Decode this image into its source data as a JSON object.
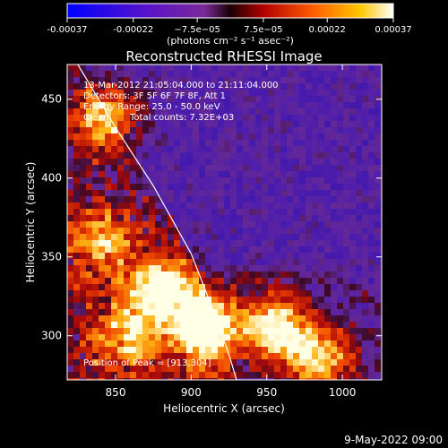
{
  "colorbar": {
    "tick_labels": [
      "-0.00037",
      "-0.00022",
      "−7.5e−05",
      "7.5e−05",
      "0.00022",
      "0.00037"
    ],
    "tick_values": [
      -0.00037,
      -0.00022,
      -7.5e-05,
      7.5e-05,
      0.00022,
      0.00037
    ],
    "range": [
      -0.00037,
      0.00037
    ],
    "unit_label": "(photons cm⁻² s⁻¹ asec⁻²)"
  },
  "chart_data": {
    "type": "heatmap",
    "title": "Reconstructed RHESSI Image",
    "xlabel": "Heliocentric X (arcsec)",
    "ylabel": "Heliocentric Y (arcsec)",
    "xlim": [
      818,
      1026
    ],
    "ylim": [
      272,
      472
    ],
    "x_ticks": [
      850,
      900,
      950,
      1000
    ],
    "y_ticks": [
      300,
      350,
      400,
      450
    ],
    "annotations": [
      "13-Mar-2012 21:05:04.000 to 21:11:04.000",
      "Detectors: 3F 5F 6F 7F 8F, Att 1",
      "Energy Range: 25.0 - 50.0 keV",
      "Clean",
      "Total counts: 7.32E+03"
    ],
    "peak_label": "Position of Peak = [913,304]",
    "peak_position": [
      913,
      304
    ],
    "limb_curve": [
      [
        825,
        472
      ],
      [
        850,
        432
      ],
      [
        875,
        395
      ],
      [
        900,
        352
      ],
      [
        915,
        315
      ],
      [
        925,
        288
      ],
      [
        930,
        272
      ]
    ],
    "bright_sources": [
      {
        "x": 910,
        "y": 306,
        "intensity": 1.0
      },
      {
        "x": 955,
        "y": 305,
        "intensity": 0.9
      },
      {
        "x": 985,
        "y": 285,
        "intensity": 0.75
      },
      {
        "x": 880,
        "y": 330,
        "intensity": 0.8
      },
      {
        "x": 845,
        "y": 440,
        "intensity": 0.7
      },
      {
        "x": 840,
        "y": 360,
        "intensity": 0.6
      },
      {
        "x": 860,
        "y": 300,
        "intensity": 0.55
      }
    ]
  },
  "footer": {
    "timestamp": "9-May-2022 09:00"
  },
  "colors": {
    "background": "#000000",
    "text": "#ffffff"
  }
}
